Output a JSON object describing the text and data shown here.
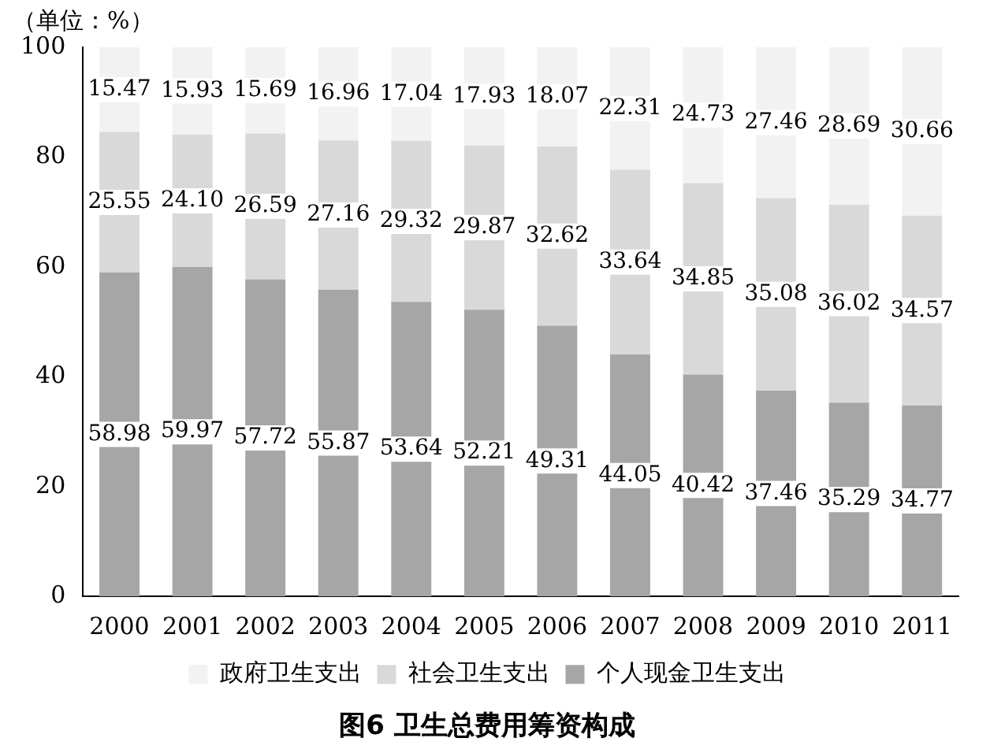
{
  "chart_data": {
    "type": "bar",
    "stacked": true,
    "title": "图6 卫生总费用筹资构成",
    "ylabel": "（单位：%）",
    "categories": [
      "2000",
      "2001",
      "2002",
      "2003",
      "2004",
      "2005",
      "2006",
      "2007",
      "2008",
      "2009",
      "2010",
      "2011"
    ],
    "series": [
      {
        "name": "个人现金卫生支出",
        "color": "#a6a6a6",
        "values": [
          58.98,
          59.97,
          57.72,
          55.87,
          53.64,
          52.21,
          49.31,
          44.05,
          40.42,
          37.46,
          35.29,
          34.77
        ],
        "value_labels": [
          "58.98",
          "59.97",
          "57.72",
          "55.87",
          "53.64",
          "52.21",
          "49.31",
          "44.05",
          "40.42",
          "37.46",
          "35.29",
          "34.77"
        ]
      },
      {
        "name": "社会卫生支出",
        "color": "#d9d9d9",
        "values": [
          25.55,
          24.1,
          26.59,
          27.16,
          29.32,
          29.87,
          32.62,
          33.64,
          34.85,
          35.08,
          36.02,
          34.57
        ],
        "value_labels": [
          "25.55",
          "24.10",
          "26.59",
          "27.16",
          "29.32",
          "29.87",
          "32.62",
          "33.64",
          "34.85",
          "35.08",
          "36.02",
          "34.57"
        ]
      },
      {
        "name": "政府卫生支出",
        "color": "#f2f2f2",
        "values": [
          15.47,
          15.93,
          15.69,
          16.96,
          17.04,
          17.93,
          18.07,
          22.31,
          24.73,
          27.46,
          28.69,
          30.66
        ],
        "value_labels": [
          "15.47",
          "15.93",
          "15.69",
          "16.96",
          "17.04",
          "17.93",
          "18.07",
          "22.31",
          "24.73",
          "27.46",
          "28.69",
          "30.66"
        ]
      }
    ],
    "ylim": [
      0,
      100
    ],
    "yticks": [
      0,
      20,
      40,
      60,
      80,
      100
    ],
    "grid": false,
    "legend": "bottom"
  }
}
